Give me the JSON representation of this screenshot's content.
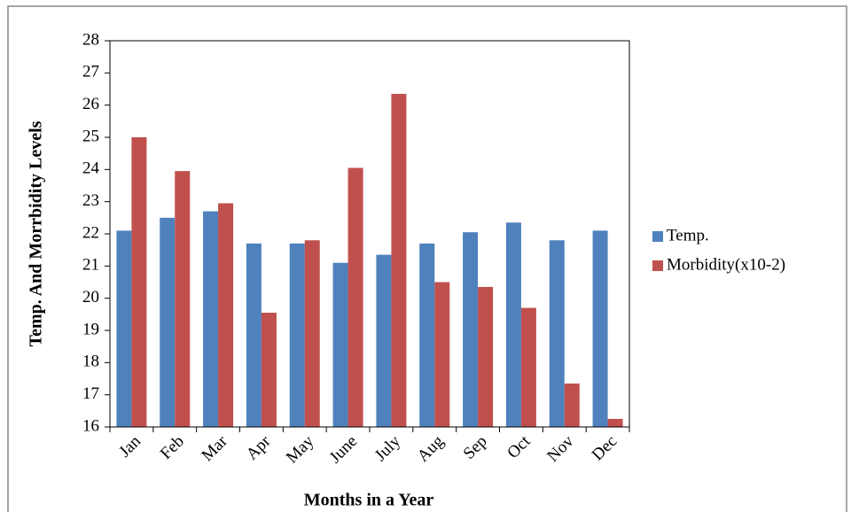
{
  "chart_data": {
    "type": "bar",
    "x_label": "Months in a Year",
    "y_label": "Temp. And  Morrbidity  Levels",
    "categories": [
      "Jan",
      "Feb",
      "Mar",
      "Apr",
      "May",
      "June",
      "July",
      "Aug",
      "Sep",
      "Oct",
      "Nov",
      "Dec"
    ],
    "series": [
      {
        "name": "Temp.",
        "color": "#4f81bd",
        "values": [
          22.1,
          22.5,
          22.7,
          21.7,
          21.7,
          21.1,
          21.35,
          21.7,
          22.05,
          22.35,
          21.8,
          22.1
        ]
      },
      {
        "name": "Morbidity(x10-2)",
        "color": "#c0504d",
        "values": [
          25.0,
          23.95,
          22.95,
          19.55,
          21.8,
          24.05,
          26.35,
          20.5,
          20.35,
          19.7,
          17.35,
          16.25
        ]
      }
    ],
    "ylim": [
      16,
      28
    ],
    "yticks": [
      16,
      17,
      18,
      19,
      20,
      21,
      22,
      23,
      24,
      25,
      26,
      27,
      28
    ],
    "grid": false,
    "legend": "right"
  }
}
